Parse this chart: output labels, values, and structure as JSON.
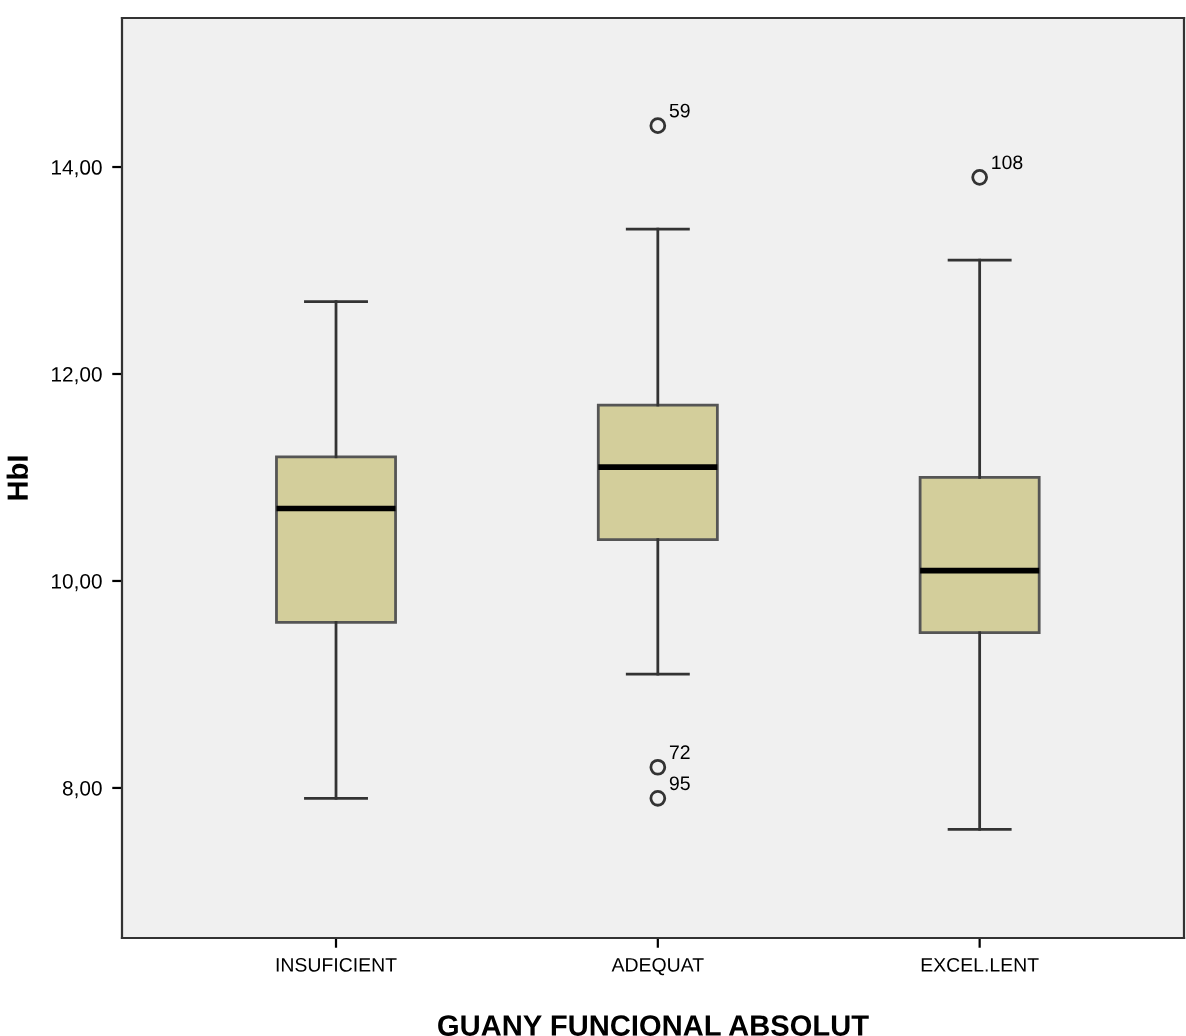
{
  "chart_data": {
    "type": "box",
    "xlabel": "GUANY FUNCIONAL ABSOLUT",
    "ylabel": "HbI",
    "categories": [
      "INSUFICIENT",
      "ADEQUAT",
      "EXCEL.LENT"
    ],
    "color": "#d3ce9b",
    "boxes": [
      {
        "low": 7.9,
        "q1": 9.6,
        "median": 10.7,
        "q3": 11.2,
        "high": 12.7
      },
      {
        "low": 9.1,
        "q1": 10.4,
        "median": 11.1,
        "q3": 11.7,
        "high": 13.4,
        "outliers": [
          14.4,
          8.2,
          7.9
        ]
      },
      {
        "low": 7.6,
        "q1": 9.5,
        "median": 10.1,
        "q3": 11.0,
        "high": 13.1,
        "outliers": [
          13.9
        ]
      }
    ],
    "annotations": [
      "59",
      "72",
      "95",
      "108"
    ],
    "ylim": [
      6.55,
      15.44
    ],
    "yticks": [
      {
        "value": 8,
        "label": "8,00"
      },
      {
        "value": 10,
        "label": "10,00"
      },
      {
        "value": 12,
        "label": "12,00"
      },
      {
        "value": 14,
        "label": "14,00"
      }
    ],
    "grid": false
  }
}
